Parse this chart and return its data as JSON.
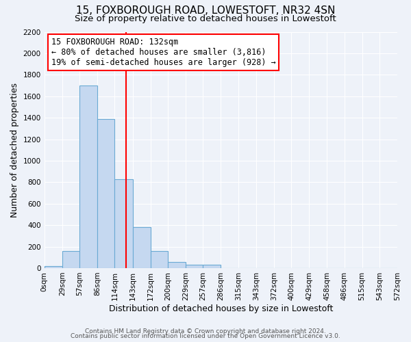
{
  "title": "15, FOXBOROUGH ROAD, LOWESTOFT, NR32 4SN",
  "subtitle": "Size of property relative to detached houses in Lowestoft",
  "xlabel": "Distribution of detached houses by size in Lowestoft",
  "ylabel": "Number of detached properties",
  "bar_edges": [
    0,
    29,
    57,
    86,
    114,
    143,
    172,
    200,
    229,
    257,
    286,
    315,
    343,
    372,
    400,
    429,
    458,
    486,
    515,
    543,
    572
  ],
  "bar_heights": [
    20,
    160,
    1700,
    1390,
    830,
    380,
    160,
    60,
    30,
    30,
    0,
    0,
    0,
    0,
    0,
    0,
    0,
    0,
    0,
    0
  ],
  "bar_color": "#c5d8f0",
  "bar_edge_color": "#6aaad4",
  "vline_x": 132,
  "vline_color": "red",
  "annotation_line1": "15 FOXBOROUGH ROAD: 132sqm",
  "annotation_line2": "← 80% of detached houses are smaller (3,816)",
  "annotation_line3": "19% of semi-detached houses are larger (928) →",
  "ylim": [
    0,
    2200
  ],
  "yticks": [
    0,
    200,
    400,
    600,
    800,
    1000,
    1200,
    1400,
    1600,
    1800,
    2000,
    2200
  ],
  "tick_labels": [
    "0sqm",
    "29sqm",
    "57sqm",
    "86sqm",
    "114sqm",
    "143sqm",
    "172sqm",
    "200sqm",
    "229sqm",
    "257sqm",
    "286sqm",
    "315sqm",
    "343sqm",
    "372sqm",
    "400sqm",
    "429sqm",
    "458sqm",
    "486sqm",
    "515sqm",
    "543sqm",
    "572sqm"
  ],
  "footnote1": "Contains HM Land Registry data © Crown copyright and database right 2024.",
  "footnote2": "Contains public sector information licensed under the Open Government Licence v3.0.",
  "background_color": "#eef2f9",
  "grid_color": "#ffffff",
  "title_fontsize": 11,
  "subtitle_fontsize": 9.5,
  "axis_label_fontsize": 9,
  "tick_fontsize": 7.5,
  "annotation_fontsize": 8.5,
  "footnote_fontsize": 6.5
}
